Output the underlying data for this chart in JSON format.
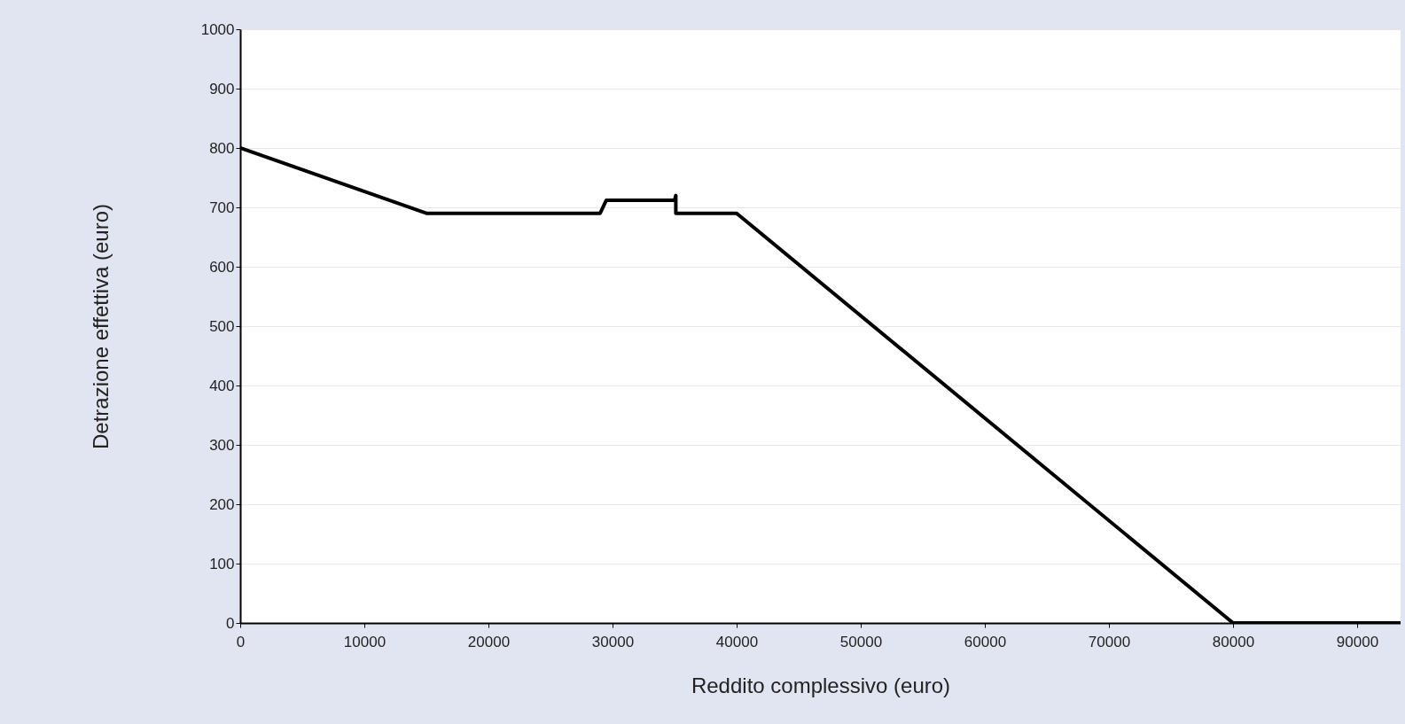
{
  "chart_data": {
    "type": "line",
    "xlabel": "Reddito complessivo (euro)",
    "ylabel": "Detrazione effettiva (euro)",
    "x": [
      0,
      15000,
      29000,
      29500,
      35000,
      35100,
      35100,
      40000,
      80000,
      93500
    ],
    "series": [
      {
        "color": "#000000",
        "values": [
          800,
          690,
          690,
          712,
          712,
          720,
          690,
          690,
          0,
          0
        ]
      }
    ],
    "xlim": [
      0,
      93500
    ],
    "xticks": [
      0,
      10000,
      20000,
      30000,
      40000,
      50000,
      60000,
      70000,
      80000,
      90000
    ],
    "ylim": [
      0,
      1000
    ],
    "yticks": [
      0,
      100,
      200,
      300,
      400,
      500,
      600,
      700,
      800,
      900,
      1000
    ],
    "grid": "y",
    "marker": "none",
    "line_style": "solid"
  }
}
